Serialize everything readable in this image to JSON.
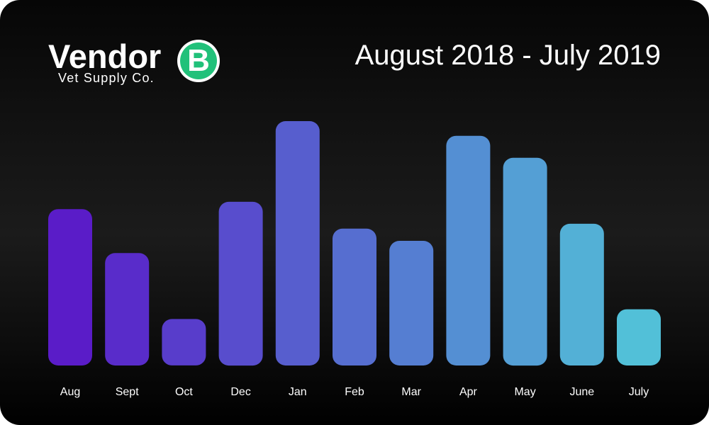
{
  "brand": {
    "name": "Vendor",
    "badge_letter": "B",
    "tagline": "Vet Supply Co.",
    "badge_color": "#21c17a"
  },
  "chart_data": {
    "type": "bar",
    "title": "August 2018 - July 2019",
    "xlabel": "",
    "ylabel": "",
    "categories": [
      "Aug",
      "Sept",
      "Oct",
      "Dec",
      "Jan",
      "Feb",
      "Mar",
      "Apr",
      "May",
      "June",
      "July"
    ],
    "values": [
      64,
      46,
      19,
      67,
      100,
      56,
      51,
      94,
      85,
      58,
      23
    ],
    "ylim": [
      0,
      100
    ],
    "grid": false,
    "legend": "none",
    "bar_color_start": "#5a1cc8",
    "bar_color_end": "#52c0d8"
  }
}
